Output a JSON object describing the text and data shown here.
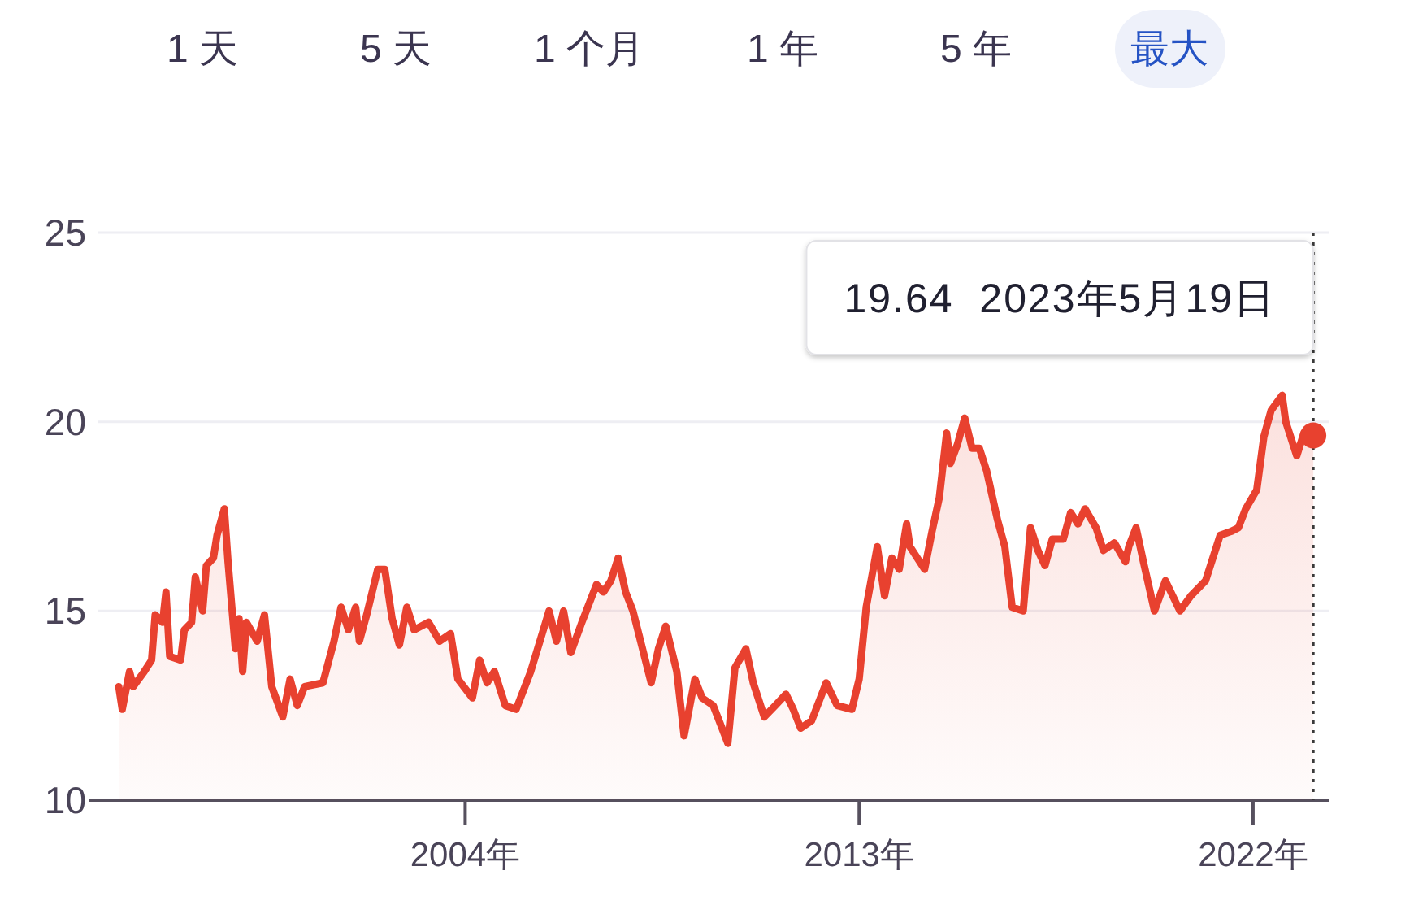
{
  "chart_data": {
    "type": "area",
    "annotations": [
      "1 天",
      "5 天",
      "1 个月",
      "1 年",
      "5 年",
      "最大",
      "19.64  2023年5月19日"
    ],
    "xlim": [
      "1995-06",
      "2023-10"
    ],
    "ylim": [
      10,
      25
    ],
    "xticks": [
      {
        "value": "2004-01-01",
        "label": "2004年"
      },
      {
        "value": "2013-01-01",
        "label": "2013年"
      },
      {
        "value": "2022-01-01",
        "label": "2022年"
      }
    ],
    "yticks": [
      10,
      15,
      20,
      25
    ],
    "grid": "y",
    "ref_lines": [
      {
        "axis": "x",
        "value": "2023-05-19",
        "color": "#3a3a3a",
        "line_style": "dotted"
      }
    ],
    "series": [
      {
        "color": "#e8412f",
        "x": [
          "1996-02",
          "1996-03",
          "1996-05",
          "1996-06",
          "1996-09",
          "1996-11",
          "1996-12",
          "1997-02",
          "1997-03",
          "1997-04",
          "1997-07",
          "1997-08",
          "1997-10",
          "1997-11",
          "1998-01",
          "1998-02",
          "1998-04",
          "1998-05",
          "1998-07",
          "1998-08",
          "1998-10",
          "1998-11",
          "1998-12",
          "1999-01",
          "1999-04",
          "1999-06",
          "1999-08",
          "1999-11",
          "2000-01",
          "2000-03",
          "2000-05",
          "2000-10",
          "2001-01",
          "2001-03",
          "2001-05",
          "2001-07",
          "2001-08",
          "2001-10",
          "2002-01",
          "2002-03",
          "2002-05",
          "2002-07",
          "2002-09",
          "2002-11",
          "2003-03",
          "2003-06",
          "2003-09",
          "2003-11",
          "2004-03",
          "2004-05",
          "2004-07",
          "2004-09",
          "2004-12",
          "2005-03",
          "2005-07",
          "2005-12",
          "2006-02",
          "2006-04",
          "2006-06",
          "2006-09",
          "2007-01",
          "2007-03",
          "2007-05",
          "2007-07",
          "2007-09",
          "2007-11",
          "2008-04",
          "2008-06",
          "2008-08",
          "2008-11",
          "2009-01",
          "2009-04",
          "2009-06",
          "2009-09",
          "2010-01",
          "2010-03",
          "2010-06",
          "2010-08",
          "2010-11",
          "2011-02",
          "2011-05",
          "2011-07",
          "2011-09",
          "2011-12",
          "2012-04",
          "2012-07",
          "2012-11",
          "2013-01",
          "2013-03",
          "2013-06",
          "2013-08",
          "2013-10",
          "2013-12",
          "2014-02",
          "2014-03",
          "2014-07",
          "2014-09",
          "2014-11",
          "2015-01",
          "2015-02",
          "2015-04",
          "2015-06",
          "2015-08",
          "2015-10",
          "2015-12",
          "2016-03",
          "2016-05",
          "2016-07",
          "2016-10",
          "2016-12",
          "2017-02",
          "2017-04",
          "2017-06",
          "2017-09",
          "2017-11",
          "2018-01",
          "2018-03",
          "2018-06",
          "2018-08",
          "2018-11",
          "2019-02",
          "2019-03",
          "2019-05",
          "2019-07",
          "2019-10",
          "2020-01",
          "2020-05",
          "2020-08",
          "2020-12",
          "2021-04",
          "2021-07",
          "2021-09",
          "2021-11",
          "2022-02",
          "2022-04",
          "2022-06",
          "2022-09",
          "2022-10",
          "2023-01",
          "2023-03",
          "2023-05-19"
        ],
        "values": [
          13.0,
          12.4,
          13.4,
          13.0,
          13.4,
          13.7,
          14.9,
          14.7,
          15.5,
          13.8,
          13.7,
          14.5,
          14.7,
          15.9,
          15.0,
          16.2,
          16.4,
          17.0,
          17.7,
          16.3,
          14.0,
          14.8,
          13.4,
          14.7,
          14.2,
          14.9,
          13.0,
          12.2,
          13.2,
          12.5,
          13.0,
          13.1,
          14.2,
          15.1,
          14.5,
          15.1,
          14.2,
          14.9,
          16.1,
          16.1,
          14.8,
          14.1,
          15.1,
          14.5,
          14.7,
          14.2,
          14.4,
          13.2,
          12.7,
          13.7,
          13.1,
          13.4,
          12.5,
          12.4,
          13.4,
          15.0,
          14.2,
          15.0,
          13.9,
          14.7,
          15.7,
          15.5,
          15.8,
          16.4,
          15.5,
          15.0,
          13.1,
          14.0,
          14.6,
          13.4,
          11.7,
          13.2,
          12.7,
          12.5,
          11.5,
          13.5,
          14.0,
          13.1,
          12.2,
          12.5,
          12.8,
          12.4,
          11.9,
          12.1,
          13.1,
          12.5,
          12.4,
          13.2,
          15.1,
          16.7,
          15.4,
          16.4,
          16.1,
          17.3,
          16.7,
          16.1,
          17.1,
          18.0,
          19.7,
          18.9,
          19.4,
          20.1,
          19.3,
          19.3,
          18.7,
          17.4,
          16.7,
          15.1,
          15.0,
          17.2,
          16.6,
          16.2,
          16.9,
          16.9,
          17.6,
          17.3,
          17.7,
          17.2,
          16.6,
          16.8,
          16.3,
          16.7,
          17.2,
          16.3,
          15.0,
          15.8,
          15.0,
          15.4,
          15.8,
          17.0,
          17.1,
          17.2,
          17.7,
          18.2,
          19.6,
          20.3,
          20.7,
          20.0,
          19.1,
          19.7,
          19.64
        ]
      },
      {
        "type": "scatter",
        "color": "#e8412f",
        "marker": "circle",
        "x": [
          "2023-05-19"
        ],
        "values": [
          19.64
        ]
      }
    ]
  }
}
